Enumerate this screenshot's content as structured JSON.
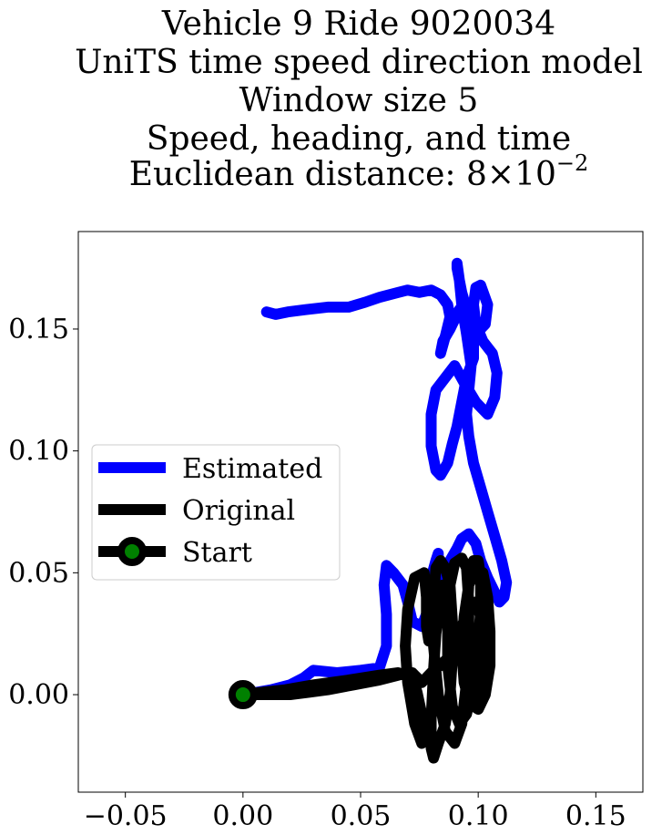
{
  "chart_data": {
    "type": "line",
    "title_lines": [
      "Vehicle 9 Ride 9020034",
      "UniTS time speed direction model",
      "Window size 5",
      "Speed, heading, and time"
    ],
    "title_last_prefix": "Euclidean distance: ",
    "title_last_mantissa": "8",
    "title_last_times": "×",
    "title_last_base": "10",
    "title_last_exponent": "−2",
    "xlim": [
      -0.07,
      0.17
    ],
    "ylim": [
      -0.04,
      0.19
    ],
    "xticks": [
      -0.05,
      0.0,
      0.05,
      0.1,
      0.15
    ],
    "xtick_labels": [
      "−0.05",
      "0.00",
      "0.05",
      "0.10",
      "0.15"
    ],
    "yticks": [
      0.0,
      0.05,
      0.1,
      0.15
    ],
    "ytick_labels": [
      "0.00",
      "0.05",
      "0.10",
      "0.15"
    ],
    "legend_position": "center-left",
    "series": [
      {
        "name": "Estimated",
        "color": "#0000ff",
        "x": [
          0.0,
          0.006,
          0.012,
          0.02,
          0.026,
          0.03,
          0.04,
          0.05,
          0.058,
          0.061,
          0.061,
          0.06,
          0.061,
          0.064,
          0.068,
          0.07,
          0.072,
          0.076,
          0.078,
          0.08,
          0.082,
          0.083,
          0.083,
          0.082,
          0.08,
          0.079,
          0.079,
          0.081,
          0.084,
          0.088,
          0.091,
          0.093,
          0.096,
          0.099,
          0.101,
          0.104,
          0.107,
          0.109,
          0.111,
          0.112,
          0.11,
          0.107,
          0.104,
          0.101,
          0.098,
          0.096,
          0.095,
          0.096,
          0.097,
          0.095,
          0.093,
          0.092,
          0.091,
          0.091,
          0.093,
          0.096,
          0.098,
          0.098,
          0.095,
          0.093,
          0.091,
          0.089,
          0.087,
          0.084,
          0.082,
          0.08,
          0.08,
          0.082,
          0.086,
          0.09,
          0.094,
          0.099,
          0.104,
          0.107,
          0.108,
          0.106,
          0.102,
          0.099,
          0.098,
          0.099,
          0.101,
          0.104,
          0.103,
          0.099,
          0.096,
          0.094,
          0.092,
          0.088,
          0.085,
          0.084,
          0.086,
          0.088,
          0.087,
          0.084,
          0.08,
          0.075,
          0.07,
          0.066,
          0.058,
          0.052,
          0.045,
          0.036,
          0.027,
          0.019,
          0.014,
          0.01
        ],
        "y": [
          0.0,
          0.001,
          0.002,
          0.004,
          0.007,
          0.01,
          0.009,
          0.01,
          0.011,
          0.02,
          0.033,
          0.045,
          0.053,
          0.05,
          0.045,
          0.038,
          0.03,
          0.028,
          0.033,
          0.04,
          0.047,
          0.055,
          0.058,
          0.055,
          0.048,
          0.04,
          0.035,
          0.037,
          0.045,
          0.055,
          0.06,
          0.064,
          0.066,
          0.062,
          0.055,
          0.048,
          0.042,
          0.038,
          0.04,
          0.046,
          0.055,
          0.065,
          0.075,
          0.085,
          0.095,
          0.106,
          0.115,
          0.125,
          0.135,
          0.148,
          0.16,
          0.17,
          0.177,
          0.175,
          0.165,
          0.155,
          0.145,
          0.138,
          0.13,
          0.12,
          0.11,
          0.103,
          0.095,
          0.09,
          0.092,
          0.102,
          0.115,
          0.125,
          0.13,
          0.135,
          0.128,
          0.12,
          0.115,
          0.122,
          0.132,
          0.14,
          0.145,
          0.152,
          0.16,
          0.167,
          0.168,
          0.16,
          0.152,
          0.148,
          0.155,
          0.16,
          0.158,
          0.15,
          0.145,
          0.14,
          0.147,
          0.155,
          0.16,
          0.164,
          0.166,
          0.165,
          0.166,
          0.165,
          0.163,
          0.161,
          0.159,
          0.159,
          0.158,
          0.157,
          0.156,
          0.157
        ]
      },
      {
        "name": "Original",
        "color": "#000000",
        "x": [
          0.0,
          0.008,
          0.018,
          0.03,
          0.045,
          0.058,
          0.066,
          0.072,
          0.074,
          0.076,
          0.077,
          0.076,
          0.073,
          0.07,
          0.069,
          0.07,
          0.073,
          0.077,
          0.078,
          0.078,
          0.079,
          0.081,
          0.084,
          0.085,
          0.084,
          0.082,
          0.081,
          0.08,
          0.08,
          0.081,
          0.083,
          0.086,
          0.088,
          0.089,
          0.089,
          0.088,
          0.086,
          0.084,
          0.082,
          0.081,
          0.081,
          0.083,
          0.086,
          0.09,
          0.093,
          0.095,
          0.096,
          0.096,
          0.095,
          0.093,
          0.09,
          0.088,
          0.087,
          0.087,
          0.089,
          0.092,
          0.095,
          0.098,
          0.1,
          0.101,
          0.101,
          0.1,
          0.098,
          0.096,
          0.095,
          0.095,
          0.097,
          0.1,
          0.103,
          0.105,
          0.105,
          0.104,
          0.102,
          0.099,
          0.096,
          0.094,
          0.093,
          0.094,
          0.096,
          0.099,
          0.101,
          0.102,
          0.101,
          0.099,
          0.096,
          0.093,
          0.09,
          0.087,
          0.084,
          0.081,
          0.079,
          0.077,
          0.076,
          0.075,
          0.074,
          0.073,
          0.072,
          0.07,
          0.066,
          0.058,
          0.047,
          0.036,
          0.028,
          0.02,
          0.012,
          0.006,
          0.0
        ],
        "y": [
          0.0,
          0.001,
          0.002,
          0.004,
          0.006,
          0.008,
          0.009,
          0.007,
          0.001,
          -0.008,
          -0.016,
          -0.02,
          -0.012,
          0.005,
          0.02,
          0.035,
          0.048,
          0.05,
          0.04,
          0.028,
          0.022,
          0.025,
          0.035,
          0.045,
          0.04,
          0.025,
          0.01,
          -0.01,
          -0.022,
          -0.026,
          -0.02,
          -0.012,
          0.0,
          0.015,
          0.03,
          0.045,
          0.052,
          0.055,
          0.052,
          0.04,
          0.02,
          0.0,
          -0.015,
          -0.02,
          -0.012,
          0.005,
          0.022,
          0.038,
          0.052,
          0.056,
          0.054,
          0.045,
          0.03,
          0.012,
          -0.005,
          -0.012,
          -0.008,
          0.005,
          0.02,
          0.035,
          0.048,
          0.055,
          0.055,
          0.045,
          0.028,
          0.01,
          -0.004,
          -0.006,
          0.0,
          0.012,
          0.026,
          0.04,
          0.05,
          0.052,
          0.045,
          0.032,
          0.018,
          0.005,
          -0.002,
          0.0,
          0.01,
          0.022,
          0.032,
          0.038,
          0.035,
          0.028,
          0.02,
          0.015,
          0.012,
          0.01,
          0.008,
          0.006,
          0.005,
          0.006,
          0.007,
          0.008,
          0.009,
          0.009,
          0.008,
          0.006,
          0.004,
          0.002,
          0.001,
          0.0,
          0.0,
          0.0,
          0.0
        ]
      },
      {
        "name": "Start",
        "color": "#000000",
        "marker_face": "#008000",
        "x": [
          0.0
        ],
        "y": [
          0.0
        ]
      }
    ]
  }
}
